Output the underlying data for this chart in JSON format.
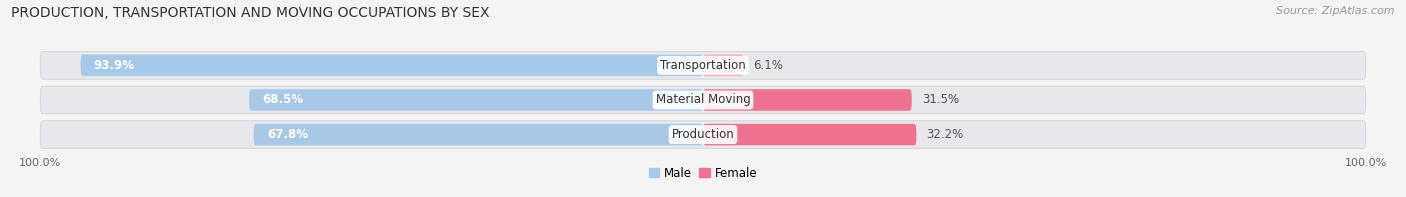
{
  "title": "PRODUCTION, TRANSPORTATION AND MOVING OCCUPATIONS BY SEX",
  "source": "Source: ZipAtlas.com",
  "categories": [
    "Transportation",
    "Material Moving",
    "Production"
  ],
  "male_values": [
    93.9,
    68.5,
    67.8
  ],
  "female_values": [
    6.1,
    31.5,
    32.2
  ],
  "male_color": "#a8c8e8",
  "female_color": "#f07090",
  "female_color_light": "#f8b0c8",
  "bg_strip_color": "#e8e8ec",
  "bg_strip_edge": "#d8d8e0",
  "title_fontsize": 10,
  "source_fontsize": 8,
  "bar_label_fontsize": 8.5,
  "category_label_fontsize": 8.5,
  "tick_label": "100.0%",
  "legend_male": "Male",
  "legend_female": "Female",
  "xlim_left": -105,
  "xlim_right": 105
}
